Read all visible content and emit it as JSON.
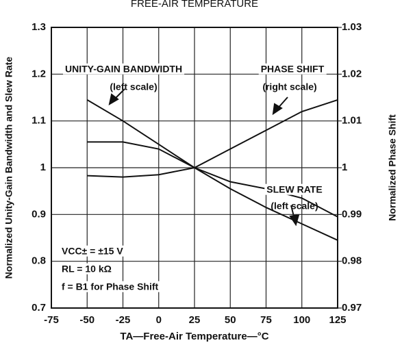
{
  "chart_data": {
    "type": "line",
    "title": "FREE-AIR TEMPERATURE",
    "x_label": "TA—Free-Air Temperature—°C",
    "y_label": "Normalized Unity-Gain Bandwidth and Slew Rate",
    "y2_label": "Normalized Phase Shift",
    "x": [
      -50,
      -25,
      0,
      25,
      50,
      75,
      100,
      125
    ],
    "series": [
      {
        "name": "UNITY-GAIN BANDWIDTH",
        "color": "#111111",
        "values": [
          1.145,
          1.1,
          1.05,
          1.0,
          0.955,
          0.915,
          0.88,
          0.845
        ]
      },
      {
        "name": "SLEW RATE",
        "color": "#111111",
        "values": [
          1.055,
          1.055,
          1.04,
          1.0,
          0.97,
          0.955,
          0.935,
          0.895
        ]
      },
      {
        "name": "PHASE SHIFT",
        "color": "#111111",
        "axis": "y2",
        "values": [
          0.9983,
          0.998,
          0.9985,
          1.0,
          1.004,
          1.008,
          1.012,
          1.0145
        ]
      }
    ],
    "xlim": [
      -75,
      125
    ],
    "xticks": [
      -75,
      -50,
      -25,
      0,
      25,
      50,
      75,
      100,
      125
    ],
    "ylim": [
      0.7,
      1.3
    ],
    "yticks": [
      0.7,
      0.8,
      0.9,
      1,
      1.1,
      1.2,
      1.3
    ],
    "y2lim": [
      0.97,
      1.03
    ],
    "y2ticks": [
      0.97,
      0.98,
      0.99,
      1,
      1.01,
      1.02,
      1.03
    ],
    "grid": true,
    "annotations": [
      "UNITY-GAIN BANDWIDTH",
      "(left scale)",
      "PHASE SHIFT",
      "(right scale)",
      "SLEW RATE",
      "(left scale)",
      "VCC± = ±15 V",
      "RL = 10 kΩ",
      "f = B1 for Phase Shift"
    ]
  }
}
